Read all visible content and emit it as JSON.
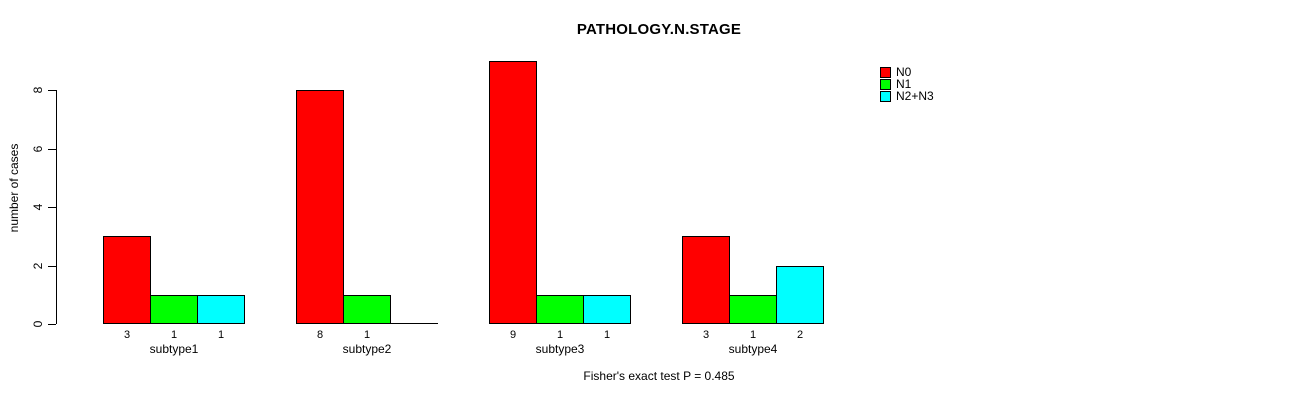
{
  "chart_data": {
    "type": "bar",
    "title": "PATHOLOGY.N.STAGE",
    "xlabel": "",
    "ylabel": "number of cases",
    "categories": [
      "subtype1",
      "subtype2",
      "subtype3",
      "subtype4"
    ],
    "series": [
      {
        "name": "N0",
        "color": "#ff0000",
        "values": [
          3,
          8,
          9,
          3
        ]
      },
      {
        "name": "N1",
        "color": "#00ff00",
        "values": [
          1,
          1,
          1,
          1
        ]
      },
      {
        "name": "N2+N3",
        "color": "#00ffff",
        "values": [
          1,
          0,
          1,
          2
        ]
      }
    ],
    "bar_value_labels": [
      [
        "3",
        "1",
        "1"
      ],
      [
        "8",
        "1",
        ""
      ],
      [
        "9",
        "1",
        "1"
      ],
      [
        "3",
        "1",
        "2"
      ]
    ],
    "ylim": [
      0,
      8
    ],
    "yticks": [
      "0",
      "2",
      "4",
      "6",
      "8"
    ],
    "grid": "off",
    "legend_position": "top-right",
    "annotation": "Fisher's exact test P = 0.485",
    "background_color": "#ffffff",
    "axis_color": "#000000"
  }
}
